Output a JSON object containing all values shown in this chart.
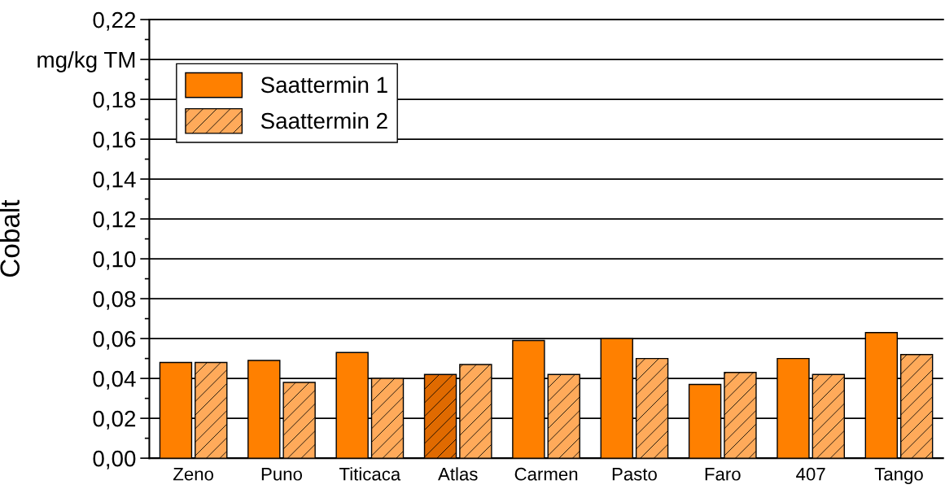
{
  "chart_data": {
    "type": "bar",
    "ylabel": "Cobalt",
    "categories": [
      "Zeno",
      "Puno",
      "Titicaca",
      "Atlas",
      "Carmen",
      "Pasto",
      "Faro",
      "407",
      "Tango"
    ],
    "series": [
      {
        "name": "Saattermin 1",
        "color": "#ff8000",
        "colors": [
          "#ff8000",
          "#ff8000",
          "#ff8000",
          "#e06a00",
          "#ff8000",
          "#ff8000",
          "#ff8000",
          "#ff8000",
          "#ff8000"
        ],
        "values": [
          0.048,
          0.049,
          0.053,
          0.042,
          0.059,
          0.06,
          0.037,
          0.05,
          0.063
        ]
      },
      {
        "name": "Saattermin 2",
        "color": "#ffaa5a",
        "values": [
          0.048,
          0.038,
          0.04,
          0.047,
          0.042,
          0.05,
          0.043,
          0.042,
          0.052
        ]
      }
    ],
    "ylim": [
      0,
      0.22
    ],
    "yticks": [
      {
        "value": 0,
        "label": "0,00"
      },
      {
        "value": 0.02,
        "label": "0,02"
      },
      {
        "value": 0.04,
        "label": "0,04"
      },
      {
        "value": 0.06,
        "label": "0,06"
      },
      {
        "value": 0.08,
        "label": "0,08"
      },
      {
        "value": 0.1,
        "label": "0,10"
      },
      {
        "value": 0.12,
        "label": "0,12"
      },
      {
        "value": 0.14,
        "label": "0,14"
      },
      {
        "value": 0.16,
        "label": "0,16"
      },
      {
        "value": 0.18,
        "label": "0,18"
      },
      {
        "value": 0.2,
        "label": "mg/kg TM"
      },
      {
        "value": 0.22,
        "label": "0,22"
      }
    ],
    "grid": "y",
    "legend": "top left"
  }
}
